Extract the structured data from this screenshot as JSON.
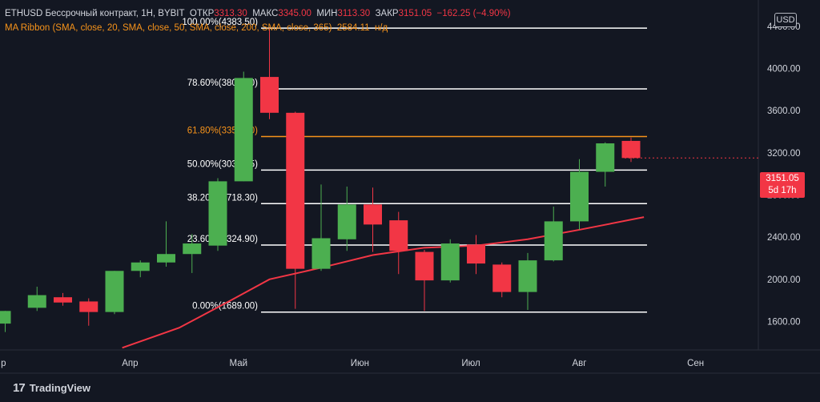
{
  "legend": {
    "symbol": "ETHUSD Бессрочный контракт, 1Н, BYBIT",
    "open_label": "ОТКР",
    "open": "3313.30",
    "high_label": "МАКС",
    "high": "3345.00",
    "low_label": "МИН",
    "low": "3113.30",
    "close_label": "ЗАКР",
    "close": "3151.05",
    "change": "−162.25 (−4.90%)",
    "ma_label": "MA Ribbon (SMA, close, 20, SMA, close, 50, SMA, close, 200, SMA, close, 365)",
    "ma_value": "2584.11",
    "ma_na": "н/д"
  },
  "currency_badge": "USD",
  "current_price": {
    "value": "3151.05",
    "countdown": "5d 17h"
  },
  "brand": {
    "name": "TradingView",
    "mark": "17"
  },
  "colors": {
    "up": "#4caf50",
    "down": "#f23645",
    "ma": "#f23645",
    "fib_line": "#ffffff",
    "fib_highlight": "#f7931a",
    "background": "#131722"
  },
  "chart_data": {
    "type": "candlestick",
    "y_axis_ticks": [
      1600,
      2000,
      2400,
      2800,
      3200,
      3600,
      4000,
      4400
    ],
    "y_tick_labels": [
      "1600.00",
      "2000.00",
      "2400.00",
      "2800.00",
      "3200.00",
      "3600.00",
      "4000.00",
      "4400.00"
    ],
    "ylim": [
      1330,
      4650
    ],
    "x_axis_labels": [
      {
        "label": "р",
        "week": -0.3
      },
      {
        "label": "Апр",
        "week": 4.6
      },
      {
        "label": "Май",
        "week": 8.8
      },
      {
        "label": "Июн",
        "week": 13.5
      },
      {
        "label": "Июл",
        "week": 17.8
      },
      {
        "label": "Авг",
        "week": 22.0
      },
      {
        "label": "Сен",
        "week": 26.5
      }
    ],
    "candles": [
      {
        "o": 1580,
        "h": 1700,
        "l": 1500,
        "c": 1700
      },
      {
        "o": 1730,
        "h": 1930,
        "l": 1700,
        "c": 1850
      },
      {
        "o": 1830,
        "h": 1870,
        "l": 1750,
        "c": 1780
      },
      {
        "o": 1790,
        "h": 1820,
        "l": 1560,
        "c": 1690
      },
      {
        "o": 1690,
        "h": 2080,
        "l": 1670,
        "c": 2080
      },
      {
        "o": 2080,
        "h": 2180,
        "l": 2020,
        "c": 2160
      },
      {
        "o": 2160,
        "h": 2550,
        "l": 2120,
        "c": 2240
      },
      {
        "o": 2240,
        "h": 2430,
        "l": 2060,
        "c": 2340
      },
      {
        "o": 2320,
        "h": 2960,
        "l": 2270,
        "c": 2930
      },
      {
        "o": 2930,
        "h": 3970,
        "l": 2930,
        "c": 3910
      },
      {
        "o": 3920,
        "h": 4383.5,
        "l": 3520,
        "c": 3580
      },
      {
        "o": 3580,
        "h": 3590,
        "l": 1720,
        "c": 2100
      },
      {
        "o": 2100,
        "h": 2900,
        "l": 2080,
        "c": 2390
      },
      {
        "o": 2380,
        "h": 2880,
        "l": 2270,
        "c": 2710
      },
      {
        "o": 2710,
        "h": 2870,
        "l": 2260,
        "c": 2520
      },
      {
        "o": 2560,
        "h": 2640,
        "l": 2050,
        "c": 2270
      },
      {
        "o": 2260,
        "h": 2280,
        "l": 1700,
        "c": 1990
      },
      {
        "o": 1990,
        "h": 2380,
        "l": 1970,
        "c": 2340
      },
      {
        "o": 2330,
        "h": 2420,
        "l": 2050,
        "c": 2150
      },
      {
        "o": 2140,
        "h": 2160,
        "l": 1830,
        "c": 1880
      },
      {
        "o": 1880,
        "h": 2250,
        "l": 1710,
        "c": 2180
      },
      {
        "o": 2180,
        "h": 2690,
        "l": 2170,
        "c": 2550
      },
      {
        "o": 2550,
        "h": 3140,
        "l": 2470,
        "c": 3020
      },
      {
        "o": 3020,
        "h": 3300,
        "l": 2880,
        "c": 3290
      },
      {
        "o": 3313.3,
        "h": 3345,
        "l": 3113.3,
        "c": 3151.05
      }
    ],
    "ma_line": [
      {
        "week": 4.3,
        "y": 1350
      },
      {
        "week": 6.5,
        "y": 1540
      },
      {
        "week": 8.5,
        "y": 1800
      },
      {
        "week": 10,
        "y": 2000
      },
      {
        "week": 12,
        "y": 2110
      },
      {
        "week": 14,
        "y": 2230
      },
      {
        "week": 16,
        "y": 2300
      },
      {
        "week": 18,
        "y": 2320
      },
      {
        "week": 20,
        "y": 2380
      },
      {
        "week": 22,
        "y": 2470
      },
      {
        "week": 24.5,
        "y": 2590
      }
    ],
    "fib_levels": [
      {
        "label": "100.00%(4383.50)",
        "value": 4383.5,
        "highlight": false
      },
      {
        "label": "78.60%(3806.90)",
        "value": 3806.9,
        "highlight": false
      },
      {
        "label": "61.80%(3354.20)",
        "value": 3354.2,
        "highlight": true
      },
      {
        "label": "50.00%(3036.25)",
        "value": 3036.25,
        "highlight": false
      },
      {
        "label": "38.20%(2718.30)",
        "value": 2718.3,
        "highlight": false
      },
      {
        "label": "23.60%(2324.90)",
        "value": 2324.9,
        "highlight": false
      },
      {
        "label": "0.00%(1689.00)",
        "value": 1689,
        "highlight": false
      }
    ]
  }
}
